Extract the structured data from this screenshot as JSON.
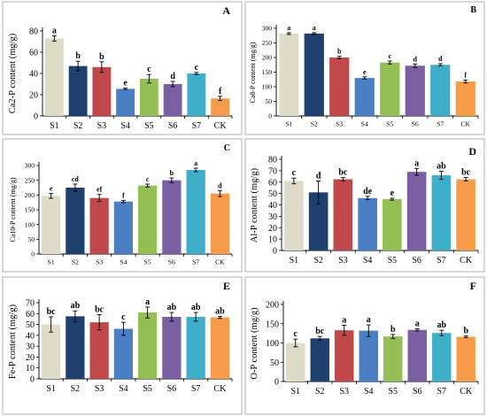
{
  "categories": [
    "S1",
    "S2",
    "S3",
    "S4",
    "S5",
    "S6",
    "S7",
    "CK"
  ],
  "colors": [
    "#dedbc8",
    "#1f3f6f",
    "#c0474a",
    "#4a7fc4",
    "#93bf55",
    "#7a5fa3",
    "#3faec8",
    "#f69b4a"
  ],
  "chart_data": [
    {
      "type": "bar",
      "panel": "A",
      "ylabel": "Ca2-P content (mg/g)",
      "ylim": [
        0,
        80
      ],
      "yticks": [
        0,
        20,
        40,
        60,
        80
      ],
      "small_text": false,
      "categories": [
        "S1",
        "S2",
        "S3",
        "S4",
        "S5",
        "S6",
        "S7",
        "CK"
      ],
      "values": [
        73,
        47,
        46,
        25.5,
        35,
        30,
        40,
        16.5
      ],
      "errors": [
        2.5,
        4.5,
        5,
        0.8,
        4,
        2.5,
        1,
        2
      ],
      "sig": [
        "a",
        "b",
        "b",
        "e",
        "c",
        "d",
        "c",
        "f"
      ]
    },
    {
      "type": "bar",
      "panel": "B",
      "ylabel": "Ca8-P content (mg/g)",
      "ylim": [
        0,
        300
      ],
      "yticks": [
        0,
        50,
        100,
        150,
        200,
        250,
        300
      ],
      "small_text": true,
      "categories": [
        "S1",
        "S2",
        "S3",
        "S4",
        "S5",
        "S6",
        "S7",
        "CK"
      ],
      "values": [
        282,
        282,
        200,
        130,
        183,
        172,
        175,
        118
      ],
      "errors": [
        3,
        3,
        4,
        4,
        5,
        6,
        4,
        5
      ],
      "sig": [
        "a",
        "a",
        "b",
        "e",
        "c",
        "d",
        "d",
        "f"
      ]
    },
    {
      "type": "bar",
      "panel": "C",
      "ylabel": "Ca10-P content (mg/g)",
      "ylim": [
        0,
        300
      ],
      "yticks": [
        0,
        50,
        100,
        150,
        200,
        250,
        300
      ],
      "small_text": true,
      "categories": [
        "S1",
        "S2",
        "S3",
        "S4",
        "S5",
        "S6",
        "S7",
        "CK"
      ],
      "values": [
        197,
        225,
        190,
        178,
        232,
        250,
        285,
        205
      ],
      "errors": [
        8,
        12,
        12,
        4,
        5,
        8,
        6,
        10
      ],
      "sig": [
        "e",
        "cd",
        "ef",
        "f",
        "c",
        "b",
        "a",
        "d"
      ]
    },
    {
      "type": "bar",
      "panel": "D",
      "ylabel": "Al-P content (mg/g)",
      "ylim": [
        0,
        80
      ],
      "yticks": [
        0,
        10,
        20,
        30,
        40,
        50,
        60,
        70,
        80
      ],
      "small_text": false,
      "categories": [
        "S1",
        "S2",
        "S3",
        "S4",
        "S5",
        "S6",
        "S7",
        "CK"
      ],
      "values": [
        61,
        51,
        62.5,
        46,
        45,
        69,
        66,
        62.5
      ],
      "errors": [
        2.5,
        10,
        1.5,
        1.5,
        0.8,
        3,
        3.5,
        1.5
      ],
      "sig": [
        "c",
        "d",
        "bc",
        "de",
        "e",
        "a",
        "ab",
        "bc"
      ]
    },
    {
      "type": "bar",
      "panel": "E",
      "ylabel": "Fe-P content (mg/g)",
      "ylim": [
        0,
        70
      ],
      "yticks": [
        0,
        10,
        20,
        30,
        40,
        50,
        60,
        70
      ],
      "small_text": false,
      "categories": [
        "S1",
        "S2",
        "S3",
        "S4",
        "S5",
        "S6",
        "S7",
        "CK"
      ],
      "values": [
        50,
        57.5,
        52,
        46,
        61,
        57,
        57,
        56.5
      ],
      "errors": [
        7,
        5,
        7,
        6,
        5,
        4,
        4,
        1
      ],
      "sig": [
        "bc",
        "ab",
        "bc",
        "c",
        "a",
        "ab",
        "ab",
        "ab"
      ]
    },
    {
      "type": "bar",
      "panel": "F",
      "ylabel": "O-P content (mg/g)",
      "ylim": [
        0,
        200
      ],
      "yticks": [
        0,
        50,
        100,
        150,
        200
      ],
      "small_text": false,
      "categories": [
        "S1",
        "S2",
        "S3",
        "S4",
        "S5",
        "S6",
        "S7",
        "CK"
      ],
      "values": [
        100,
        112,
        133,
        132,
        117,
        134,
        126,
        116
      ],
      "errors": [
        10,
        5,
        13,
        15,
        5,
        3,
        7,
        2
      ],
      "sig": [
        "c",
        "bc",
        "a",
        "a",
        "b",
        "a",
        "ab",
        "b"
      ]
    }
  ]
}
